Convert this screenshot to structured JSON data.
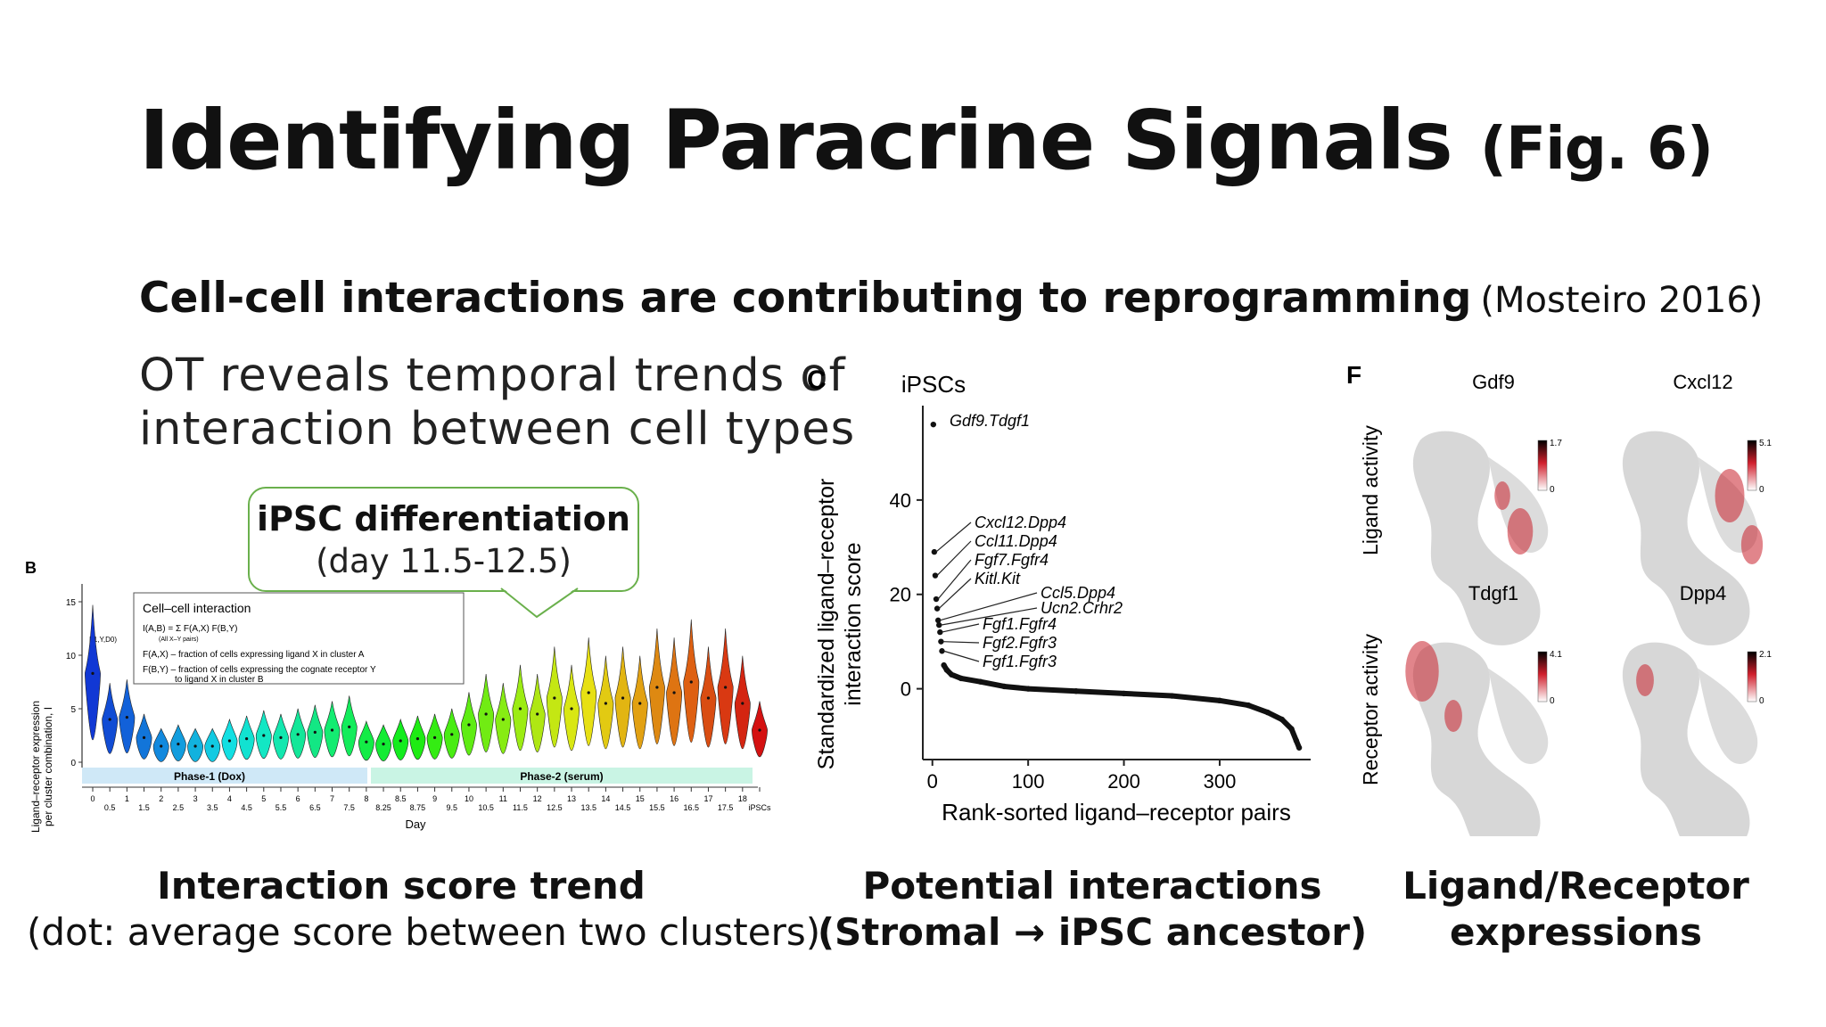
{
  "slide": {
    "title": "Identifying Paracrine Signals",
    "title_suffix": "(Fig. 6)",
    "subtitle": "Cell-cell interactions are contributing to reprogramming",
    "subtitle_cite": "(Mosteiro 2016)",
    "lead_line1": "OT reveals temporal trends of",
    "lead_line2": "interaction between cell types",
    "callout_line1": "iPSC differentiation",
    "callout_line2": "(day 11.5-12.5)",
    "caption_b_line1": "Interaction score trend",
    "caption_b_line2": "(dot: average score between two clusters)",
    "caption_c_line1": "Potential interactions",
    "caption_c_line2": "(Stromal → iPSC ancestor)",
    "caption_f_line1": "Ligand/Receptor",
    "caption_f_line2": "expressions"
  },
  "panel_b": {
    "letter": "B",
    "ylabel_line1": "Ligand–receptor expression",
    "ylabel_line2": "per cluster combination, I",
    "xlabel": "Day",
    "phase1": "Phase-1 (Dox)",
    "phase2": "Phase-2 (serum)",
    "legend_title": "Cell–cell interaction",
    "legend_formula": "I(A,B) = Σ F(A,X) F(B,Y)",
    "legend_pairs": "(All X–Y pairs)",
    "legend_line1": "F(A,X) – fraction of cells expressing ligand X in cluster A",
    "legend_line2a": "F(B,Y) – fraction of cells expressing the cognate receptor Y",
    "legend_line2b": "to ligand X in cluster B",
    "marker_label": "I(1,Y,D0)",
    "y_ticks": [
      "0",
      "5",
      "10",
      "15"
    ],
    "x_ticks": [
      "0",
      "0.5",
      "1",
      "1.5",
      "2",
      "2.5",
      "3",
      "3.5",
      "4",
      "4.5",
      "5",
      "5.5",
      "6",
      "6.5",
      "7",
      "7.5",
      "8",
      "8.25",
      "8.5",
      "8.75",
      "9",
      "9.5",
      "10",
      "10.5",
      "11",
      "11.5",
      "12",
      "12.5",
      "13",
      "13.5",
      "14",
      "14.5",
      "15",
      "15.5",
      "16",
      "16.5",
      "17",
      "17.5",
      "18",
      "iPSCs"
    ]
  },
  "panel_c": {
    "letter": "C",
    "title": "iPSCs",
    "ylabel_line1": "Standardized ligand–receptor",
    "ylabel_line2": "interaction score",
    "xlabel": "Rank-sorted ligand–receptor pairs",
    "labels": [
      "Gdf9.Tdgf1",
      "Cxcl12.Dpp4",
      "Ccl11.Dpp4",
      "Fgf7.Fgfr4",
      "Kitl.Kit",
      "Ccl5.Dpp4",
      "Ucn2.Crhr2",
      "Fgf1.Fgfr4",
      "Fgf2.Fgfr3",
      "Fgf1.Fgfr3"
    ]
  },
  "panel_f": {
    "letter": "F",
    "row1_label": "Ligand activity",
    "row2_label": "Receptor activity",
    "maps": [
      {
        "gene": "Gdf9",
        "max": "1.7",
        "min": "0"
      },
      {
        "gene": "Cxcl12",
        "max": "5.1",
        "min": "0"
      },
      {
        "gene": "Tdgf1",
        "max": "4.1",
        "min": "0"
      },
      {
        "gene": "Dpp4",
        "max": "2.1",
        "min": "0"
      }
    ]
  },
  "chart_data": [
    {
      "type": "scatter",
      "title": "iPSCs",
      "xlabel": "Rank-sorted ligand–receptor pairs",
      "ylabel": "Standardized ligand–receptor interaction score",
      "xlim": [
        -10,
        395
      ],
      "ylim": [
        -15,
        60
      ],
      "x_ticks": [
        0,
        100,
        200,
        300
      ],
      "y_ticks": [
        0,
        20,
        40
      ],
      "series": [
        {
          "x": [
            1,
            2,
            3,
            4,
            5,
            6,
            7,
            8,
            9,
            10,
            12,
            15,
            20,
            30,
            50,
            75,
            100,
            150,
            200,
            250,
            300,
            330,
            350,
            365,
            375,
            380,
            383
          ],
          "y": [
            56,
            29,
            24,
            19,
            17,
            14.5,
            13.5,
            12,
            10,
            8,
            5,
            4,
            3,
            2.2,
            1.5,
            0.5,
            0,
            -0.5,
            -1,
            -1.5,
            -2.5,
            -3.5,
            -5,
            -6.5,
            -8.5,
            -11,
            -12.5
          ]
        }
      ]
    },
    {
      "type": "violin",
      "title": "",
      "xlabel": "Day",
      "ylabel": "Ligand–receptor expression per cluster combination",
      "ylim": [
        -1,
        17
      ],
      "categories": [
        "0",
        "0.5",
        "1",
        "1.5",
        "2",
        "2.5",
        "3",
        "3.5",
        "4",
        "4.5",
        "5",
        "5.5",
        "6",
        "6.5",
        "7",
        "7.5",
        "8",
        "8.25",
        "8.5",
        "8.75",
        "9",
        "9.5",
        "10",
        "10.5",
        "11",
        "11.5",
        "12",
        "12.5",
        "13",
        "13.5",
        "14",
        "14.5",
        "15",
        "15.5",
        "16",
        "16.5",
        "17",
        "17.5",
        "18",
        "iPSCs"
      ],
      "values": [
        8.3,
        4.0,
        4.2,
        2.3,
        1.5,
        1.7,
        1.5,
        1.5,
        2.0,
        2.2,
        2.5,
        2.3,
        2.6,
        2.8,
        3.0,
        3.3,
        1.9,
        1.7,
        2.0,
        2.2,
        2.3,
        2.6,
        3.5,
        4.5,
        4.0,
        5.0,
        4.5,
        6.0,
        5.0,
        6.5,
        5.5,
        6.0,
        5.5,
        7.0,
        6.5,
        7.5,
        6.0,
        7.0,
        5.5,
        3.0
      ]
    }
  ]
}
